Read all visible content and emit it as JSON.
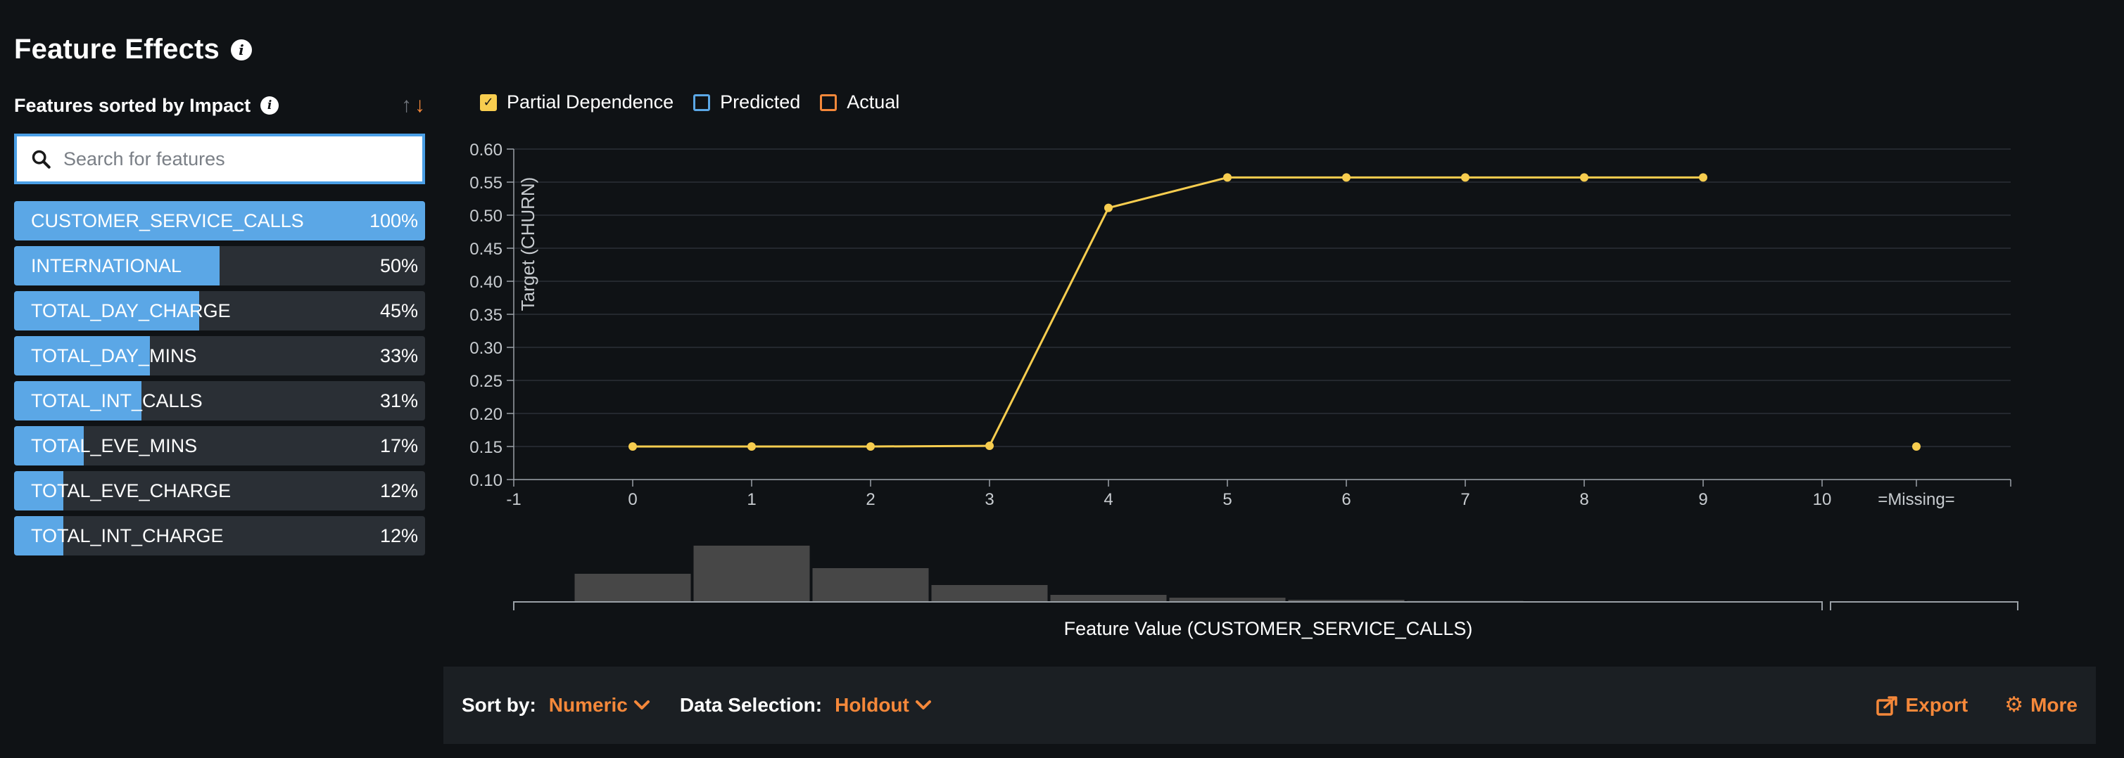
{
  "page": {
    "title": "Feature Effects"
  },
  "panel": {
    "title": "Features sorted by Impact"
  },
  "search": {
    "placeholder": "Search for features"
  },
  "features": [
    {
      "name": "CUSTOMER_SERVICE_CALLS",
      "pct_label": "100%",
      "impact": 1.0
    },
    {
      "name": "INTERNATIONAL",
      "pct_label": "50%",
      "impact": 0.5
    },
    {
      "name": "TOTAL_DAY_CHARGE",
      "pct_label": "45%",
      "impact": 0.45
    },
    {
      "name": "TOTAL_DAY_MINS",
      "pct_label": "33%",
      "impact": 0.33
    },
    {
      "name": "TOTAL_INT_CALLS",
      "pct_label": "31%",
      "impact": 0.31
    },
    {
      "name": "TOTAL_EVE_MINS",
      "pct_label": "17%",
      "impact": 0.17
    },
    {
      "name": "TOTAL_EVE_CHARGE",
      "pct_label": "12%",
      "impact": 0.12
    },
    {
      "name": "TOTAL_INT_CHARGE",
      "pct_label": "12%",
      "impact": 0.12
    }
  ],
  "legend": {
    "partial_dependence": "Partial Dependence",
    "predicted": "Predicted",
    "actual": "Actual"
  },
  "colors": {
    "accent": "#f5883a",
    "line": "#f7cd4f",
    "bar_blue": "#5ba7e6",
    "predicted": "#5ba7e6",
    "actual": "#f5883a",
    "histogram": "#474747"
  },
  "chart_data": {
    "type": "line",
    "title": "",
    "xlabel": "Feature Value (CUSTOMER_SERVICE_CALLS)",
    "ylabel": "Target (CHURN)",
    "xlim": [
      -1,
      10
    ],
    "ylim": [
      0.1,
      0.6
    ],
    "x_ticks": [
      -1,
      0,
      1,
      2,
      3,
      4,
      5,
      6,
      7,
      8,
      9,
      10
    ],
    "y_ticks": [
      "0.10",
      "0.15",
      "0.20",
      "0.25",
      "0.30",
      "0.35",
      "0.40",
      "0.45",
      "0.50",
      "0.55",
      "0.60"
    ],
    "missing_label": "=Missing=",
    "series": [
      {
        "name": "Partial Dependence",
        "x": [
          0,
          1,
          2,
          3,
          4,
          5,
          6,
          7,
          8,
          9
        ],
        "values": [
          0.15,
          0.15,
          0.15,
          0.151,
          0.511,
          0.557,
          0.557,
          0.557,
          0.557,
          0.557
        ]
      }
    ],
    "missing_value": 0.15,
    "histogram": {
      "bins": [
        0,
        1,
        2,
        3,
        4,
        5,
        6,
        7,
        8,
        9
      ],
      "counts": [
        20,
        40,
        24,
        12,
        5,
        3,
        1.5,
        0.7,
        0.4,
        0.2
      ]
    }
  },
  "footer": {
    "sort_label": "Sort by:",
    "sort_value": "Numeric",
    "data_label": "Data Selection:",
    "data_value": "Holdout",
    "export_label": "Export",
    "more_label": "More"
  }
}
